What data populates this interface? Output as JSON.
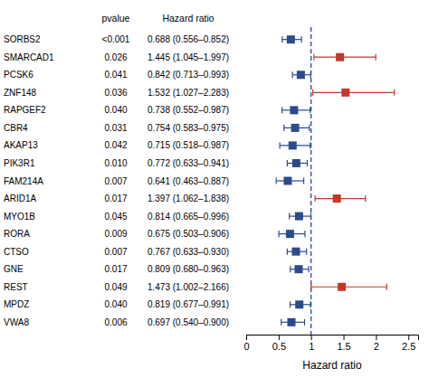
{
  "chart_data": {
    "type": "forest",
    "xlabel": "Hazard ratio",
    "categories": [
      "SORBS2",
      "SMARCAD1",
      "PCSK6",
      "ZNF148",
      "RAPGEF2",
      "CBR4",
      "AKAP13",
      "PIK3R1",
      "FAM214A",
      "ARID1A",
      "MYO1B",
      "RORA",
      "CTSO",
      "GNE",
      "REST",
      "MPDZ",
      "VWA8"
    ],
    "values": [
      0.688,
      1.445,
      0.842,
      1.532,
      0.738,
      0.754,
      0.715,
      0.772,
      0.641,
      1.397,
      0.814,
      0.675,
      0.767,
      0.809,
      1.473,
      0.819,
      0.697
    ],
    "ci_low": [
      0.556,
      1.045,
      0.713,
      1.027,
      0.552,
      0.583,
      0.518,
      0.633,
      0.463,
      1.062,
      0.665,
      0.503,
      0.633,
      0.68,
      1.002,
      0.677,
      0.54
    ],
    "ci_high": [
      0.852,
      1.997,
      0.993,
      2.283,
      0.987,
      0.975,
      0.987,
      0.941,
      0.887,
      1.838,
      0.996,
      0.906,
      0.93,
      0.963,
      2.166,
      0.991,
      0.9
    ],
    "colors": [
      "#2c4b8c",
      "#c0392b",
      "#2c4b8c",
      "#c0392b",
      "#2c4b8c",
      "#2c4b8c",
      "#2c4b8c",
      "#2c4b8c",
      "#2c4b8c",
      "#c0392b",
      "#2c4b8c",
      "#2c4b8c",
      "#2c4b8c",
      "#2c4b8c",
      "#c0392b",
      "#2c4b8c",
      "#2c4b8c"
    ],
    "marker": "square",
    "columns": [
      {
        "header": "pvalue",
        "values": [
          "<0.001",
          "0.026",
          "0.041",
          "0.036",
          "0.040",
          "0.031",
          "0.042",
          "0.010",
          "0.007",
          "0.017",
          "0.045",
          "0.009",
          "0.007",
          "0.017",
          "0.049",
          "0.040",
          "0.006"
        ]
      },
      {
        "header": "Hazard ratio",
        "values": [
          "0.688 (0.556–0.852)",
          "1.445 (1.045–1.997)",
          "0.842 (0.713–0.993)",
          "1.532 (1.027–2.283)",
          "0.738 (0.552–0.987)",
          "0.754 (0.583–0.975)",
          "0.715 (0.518–0.987)",
          "0.772 (0.633–0.941)",
          "0.641 (0.463–0.887)",
          "1.397 (1.062–1.838)",
          "0.814 (0.665–0.996)",
          "0.675 (0.503–0.906)",
          "0.767 (0.633–0.930)",
          "0.809 (0.680–0.963)",
          "1.473 (1.002–2.166)",
          "0.819 (0.677–0.991)",
          "0.697 (0.540–0.900)"
        ]
      }
    ],
    "reference_line": {
      "value": 1.0,
      "color": "#2c4b8c",
      "line_style": "dashed"
    },
    "xlim": [
      0,
      2.65
    ],
    "xticks": [
      0,
      0.5,
      1,
      1.5,
      2,
      2.5
    ]
  }
}
